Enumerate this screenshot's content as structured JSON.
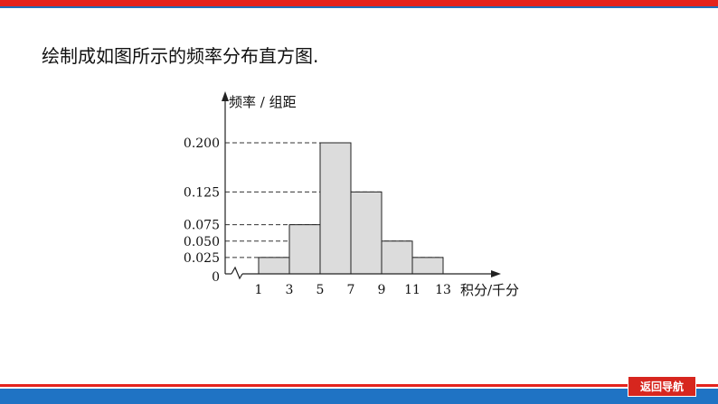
{
  "intro_text": "绘制成如图所示的频率分布直方图.",
  "nav_button_label": "返回导航",
  "colors": {
    "top_red": "#e4231d",
    "bottom_blue": "#1f73c4",
    "button_red": "#d7261e",
    "bar_fill": "#dcdcdc"
  },
  "chart_data": {
    "type": "bar",
    "subtype": "histogram",
    "ylabel": "频率 / 组距",
    "xlabel": "积分/千分",
    "x_ticks": [
      1,
      3,
      5,
      7,
      9,
      11,
      13
    ],
    "y_ticks": [
      0.025,
      0.05,
      0.075,
      0.125,
      0.2
    ],
    "y_tick_labels": [
      "0.025",
      "0.050",
      "0.075",
      "0.125",
      "0.200"
    ],
    "origin_label": "0",
    "bins": [
      {
        "from": 1,
        "to": 3,
        "value": 0.025
      },
      {
        "from": 3,
        "to": 5,
        "value": 0.075
      },
      {
        "from": 5,
        "to": 7,
        "value": 0.2
      },
      {
        "from": 7,
        "to": 9,
        "value": 0.125
      },
      {
        "from": 9,
        "to": 11,
        "value": 0.05
      },
      {
        "from": 11,
        "to": 13,
        "value": 0.025
      }
    ],
    "xlim": [
      1,
      13
    ],
    "ylim": [
      0,
      0.2
    ],
    "x_axis_break": true,
    "dashed_guides": true,
    "grid": false
  }
}
